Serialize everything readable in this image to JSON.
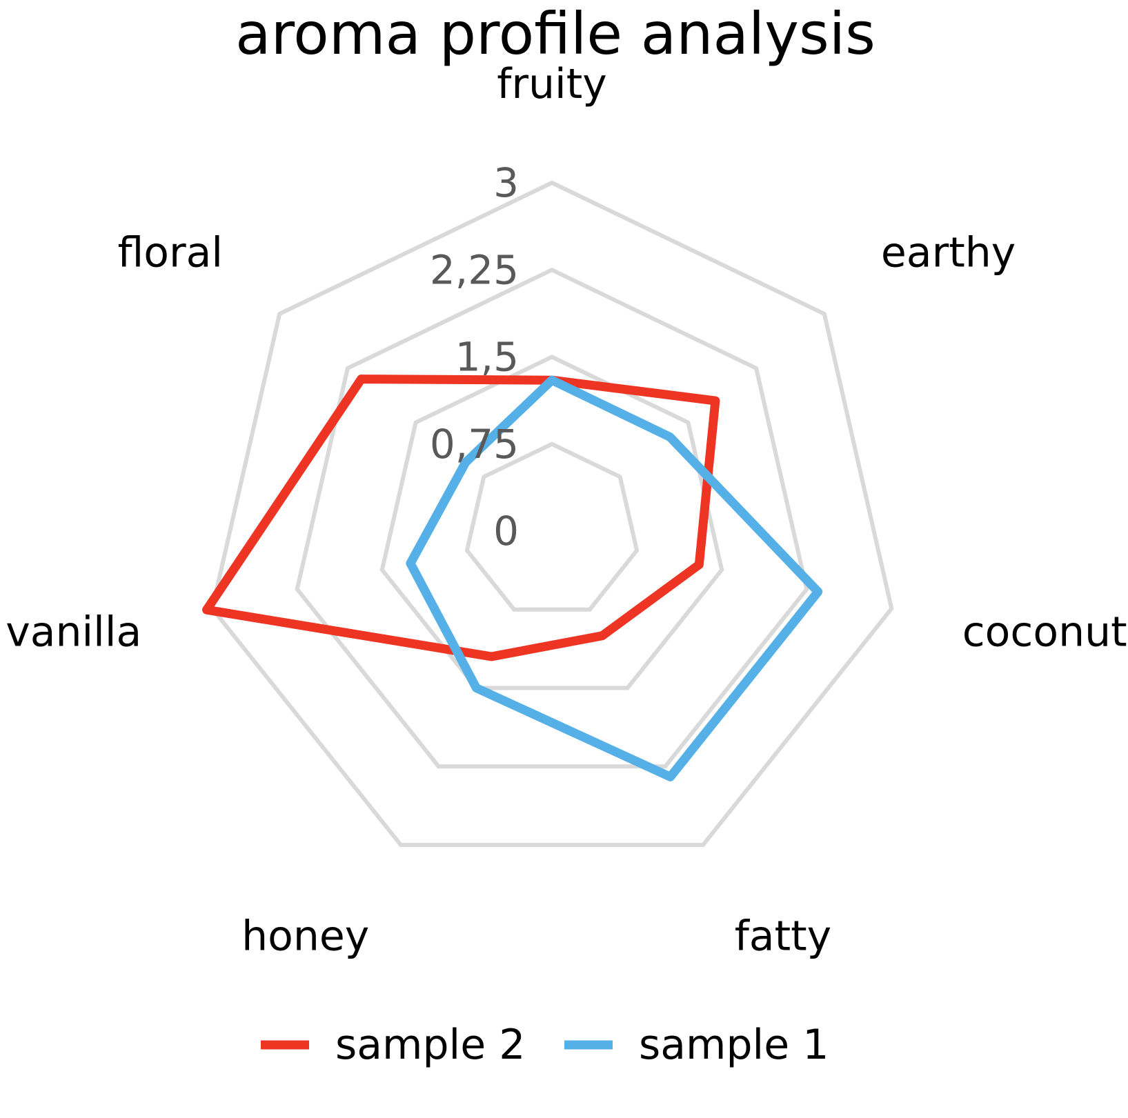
{
  "chart_data": {
    "type": "radar",
    "title": "aroma profile analysis",
    "categories": [
      "fruity",
      "earthy",
      "coconut",
      "fatty",
      "honey",
      "vanilla",
      "floral"
    ],
    "axis": {
      "min": 0,
      "max": 3,
      "ticks": [
        0,
        0.75,
        1.5,
        2.25,
        3
      ],
      "tick_labels": [
        "0",
        "0,75",
        "1,5",
        "2,25",
        "3"
      ]
    },
    "grid": true,
    "legend": {
      "position": "bottom"
    },
    "series": [
      {
        "name": "sample 2",
        "color": "#EE3524",
        "values": [
          1.3,
          1.8,
          1.3,
          1.0,
          1.2,
          3.05,
          2.1
        ]
      },
      {
        "name": "sample 1",
        "color": "#56B0E8",
        "values": [
          1.3,
          1.3,
          2.35,
          2.35,
          1.5,
          1.25,
          0.95
        ]
      }
    ]
  }
}
